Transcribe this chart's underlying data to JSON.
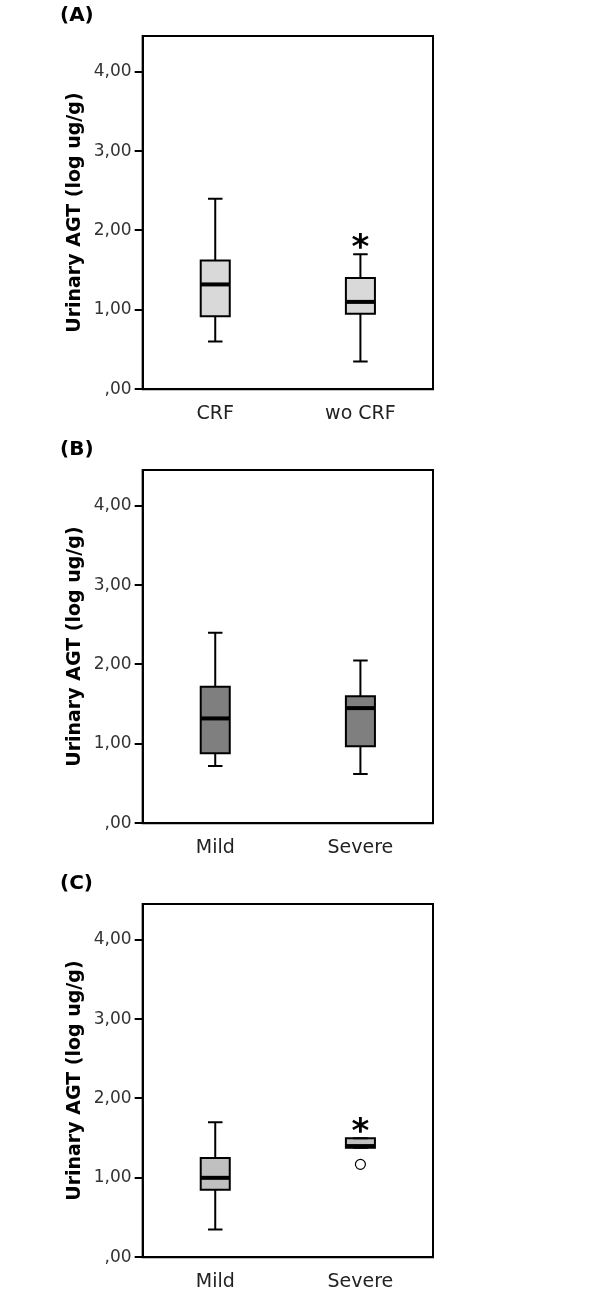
{
  "chart_data": [
    {
      "type": "box",
      "title": "(A)",
      "ylabel": "Urinary AGT (log ug/g)",
      "categories": [
        "CRF",
        "wo CRF"
      ],
      "color": "#d9d9d9",
      "ylim": [
        0,
        4.45
      ],
      "yticks": [
        {
          "value": 0,
          "label": ",00"
        },
        {
          "value": 1,
          "label": "1,00"
        },
        {
          "value": 2,
          "label": "2,00"
        },
        {
          "value": 3,
          "label": "3,00"
        },
        {
          "value": 4,
          "label": "4,00"
        }
      ],
      "grid": false,
      "legend": false,
      "boxes": [
        {
          "low": 0.6,
          "q1": 0.92,
          "median": 1.32,
          "q3": 1.62,
          "high": 2.4
        },
        {
          "low": 0.35,
          "q1": 0.95,
          "median": 1.1,
          "q3": 1.4,
          "high": 1.7
        }
      ],
      "annotations": [
        {
          "text": "*",
          "x": "wo CRF",
          "y": 1.7
        }
      ]
    },
    {
      "type": "box",
      "title": "(B)",
      "ylabel": "Urinary AGT (log ug/g)",
      "categories": [
        "Mild",
        "Severe"
      ],
      "color": "#7f7f7f",
      "ylim": [
        0,
        4.45
      ],
      "yticks": [
        {
          "value": 0,
          "label": ",00"
        },
        {
          "value": 1,
          "label": "1,00"
        },
        {
          "value": 2,
          "label": "2,00"
        },
        {
          "value": 3,
          "label": "3,00"
        },
        {
          "value": 4,
          "label": "4,00"
        }
      ],
      "grid": false,
      "legend": false,
      "boxes": [
        {
          "low": 0.72,
          "q1": 0.88,
          "median": 1.32,
          "q3": 1.72,
          "high": 2.4
        },
        {
          "low": 0.62,
          "q1": 0.97,
          "median": 1.45,
          "q3": 1.6,
          "high": 2.05
        }
      ]
    },
    {
      "type": "box",
      "title": "(C)",
      "ylabel": "Urinary AGT (log ug/g)",
      "categories": [
        "Mild",
        "Severe"
      ],
      "color": "#c0c0c0",
      "ylim": [
        0,
        4.45
      ],
      "yticks": [
        {
          "value": 0,
          "label": ",00"
        },
        {
          "value": 1,
          "label": "1,00"
        },
        {
          "value": 2,
          "label": "2,00"
        },
        {
          "value": 3,
          "label": "3,00"
        },
        {
          "value": 4,
          "label": "4,00"
        }
      ],
      "grid": false,
      "legend": false,
      "boxes": [
        {
          "low": 0.35,
          "q1": 0.85,
          "median": 1.0,
          "q3": 1.25,
          "high": 1.7
        },
        {
          "low": 1.38,
          "q1": 1.38,
          "median": 1.4,
          "q3": 1.5,
          "high": 1.5,
          "outliers": [
            1.17
          ]
        }
      ],
      "annotations": [
        {
          "text": "*",
          "x": "Severe",
          "y": 1.5
        }
      ]
    }
  ]
}
